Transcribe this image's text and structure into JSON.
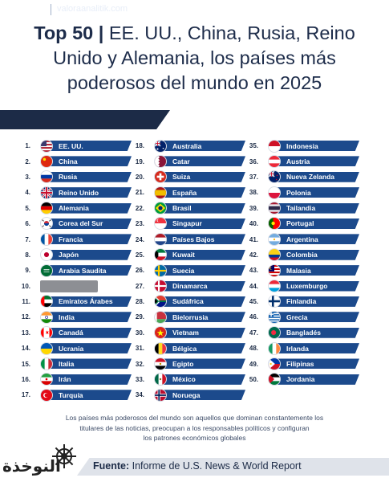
{
  "title": {
    "bold": "Top 50 |",
    "line1_rest": " EE. UU., China, Rusia, Reino",
    "line2": "Unido y Alemania, los países más",
    "line3": "poderosos del mundo en 2025"
  },
  "brand": {
    "text": "valoraanalitik.com",
    "logo_icon": "paper-plane-icon"
  },
  "countries": [
    {
      "rank": "1.",
      "name": "EE. UU.",
      "flag": "us"
    },
    {
      "rank": "2.",
      "name": "China",
      "flag": "cn"
    },
    {
      "rank": "3.",
      "name": "Rusia",
      "flag": "ru"
    },
    {
      "rank": "4.",
      "name": "Reino Unido",
      "flag": "gb"
    },
    {
      "rank": "5.",
      "name": "Alemania",
      "flag": "de"
    },
    {
      "rank": "6.",
      "name": "Corea del Sur",
      "flag": "kr"
    },
    {
      "rank": "7.",
      "name": "Francia",
      "flag": "fr"
    },
    {
      "rank": "8.",
      "name": "Japón",
      "flag": "jp"
    },
    {
      "rank": "9.",
      "name": "Arabia Saudita",
      "flag": "sa"
    },
    {
      "rank": "10.",
      "name": "",
      "flag": "redacted"
    },
    {
      "rank": "11.",
      "name": "Emiratos Árabes",
      "flag": "ae"
    },
    {
      "rank": "12.",
      "name": "India",
      "flag": "in"
    },
    {
      "rank": "13.",
      "name": "Canadá",
      "flag": "ca"
    },
    {
      "rank": "14.",
      "name": "Ucrania",
      "flag": "ua"
    },
    {
      "rank": "15.",
      "name": "Italia",
      "flag": "it"
    },
    {
      "rank": "16.",
      "name": "Irán",
      "flag": "ir"
    },
    {
      "rank": "17.",
      "name": "Turquía",
      "flag": "tr"
    },
    {
      "rank": "18.",
      "name": "Australia",
      "flag": "au"
    },
    {
      "rank": "19.",
      "name": "Catar",
      "flag": "qa"
    },
    {
      "rank": "20.",
      "name": "Suiza",
      "flag": "ch"
    },
    {
      "rank": "21.",
      "name": "España",
      "flag": "es"
    },
    {
      "rank": "22.",
      "name": "Brasil",
      "flag": "br"
    },
    {
      "rank": "23.",
      "name": "Singapur",
      "flag": "sg"
    },
    {
      "rank": "24.",
      "name": "Países Bajos",
      "flag": "nl"
    },
    {
      "rank": "25.",
      "name": "Kuwait",
      "flag": "kw"
    },
    {
      "rank": "26.",
      "name": "Suecia",
      "flag": "se"
    },
    {
      "rank": "27.",
      "name": "Dinamarca",
      "flag": "dk"
    },
    {
      "rank": "28.",
      "name": "Sudáfrica",
      "flag": "za"
    },
    {
      "rank": "29.",
      "name": "Bielorrusia",
      "flag": "by"
    },
    {
      "rank": "30.",
      "name": "Vietnam",
      "flag": "vn"
    },
    {
      "rank": "31.",
      "name": "Bélgica",
      "flag": "be"
    },
    {
      "rank": "32.",
      "name": "Egipto",
      "flag": "eg"
    },
    {
      "rank": "33.",
      "name": "México",
      "flag": "mx"
    },
    {
      "rank": "34.",
      "name": "Noruega",
      "flag": "no"
    },
    {
      "rank": "35.",
      "name": "Indonesia",
      "flag": "id"
    },
    {
      "rank": "36.",
      "name": "Austria",
      "flag": "at"
    },
    {
      "rank": "37.",
      "name": "Nueva Zelanda",
      "flag": "nz"
    },
    {
      "rank": "38.",
      "name": "Polonia",
      "flag": "pl"
    },
    {
      "rank": "39.",
      "name": "Tailandia",
      "flag": "th"
    },
    {
      "rank": "40.",
      "name": "Portugal",
      "flag": "pt"
    },
    {
      "rank": "41.",
      "name": "Argentina",
      "flag": "ar"
    },
    {
      "rank": "42.",
      "name": "Colombia",
      "flag": "co"
    },
    {
      "rank": "43.",
      "name": "Malasia",
      "flag": "my"
    },
    {
      "rank": "44.",
      "name": "Luxemburgo",
      "flag": "lu"
    },
    {
      "rank": "45.",
      "name": "Finlandia",
      "flag": "fi"
    },
    {
      "rank": "46.",
      "name": "Grecia",
      "flag": "gr"
    },
    {
      "rank": "47.",
      "name": "Bangladés",
      "flag": "bd"
    },
    {
      "rank": "48.",
      "name": "Irlanda",
      "flag": "ie"
    },
    {
      "rank": "49.",
      "name": "Filipinas",
      "flag": "ph"
    },
    {
      "rank": "50.",
      "name": "Jordania",
      "flag": "jo"
    }
  ],
  "footnote": {
    "line1": "Los países más poderosos del mundo son aquellos que dominan constantemente los",
    "line2": "titulares de las noticias, preocupan a los responsables políticos y configuran",
    "line3": "los patrones económicos globales"
  },
  "source": {
    "label": "Fuente:",
    "text": " Informe de U.S. News & World Report"
  },
  "watermark": {
    "text": "النوخذة",
    "icon": "ship-wheel-icon"
  },
  "colors": {
    "navy": "#1c2b47",
    "bar": "#1c4a8c",
    "footer_bg": "#dfe3ea"
  }
}
